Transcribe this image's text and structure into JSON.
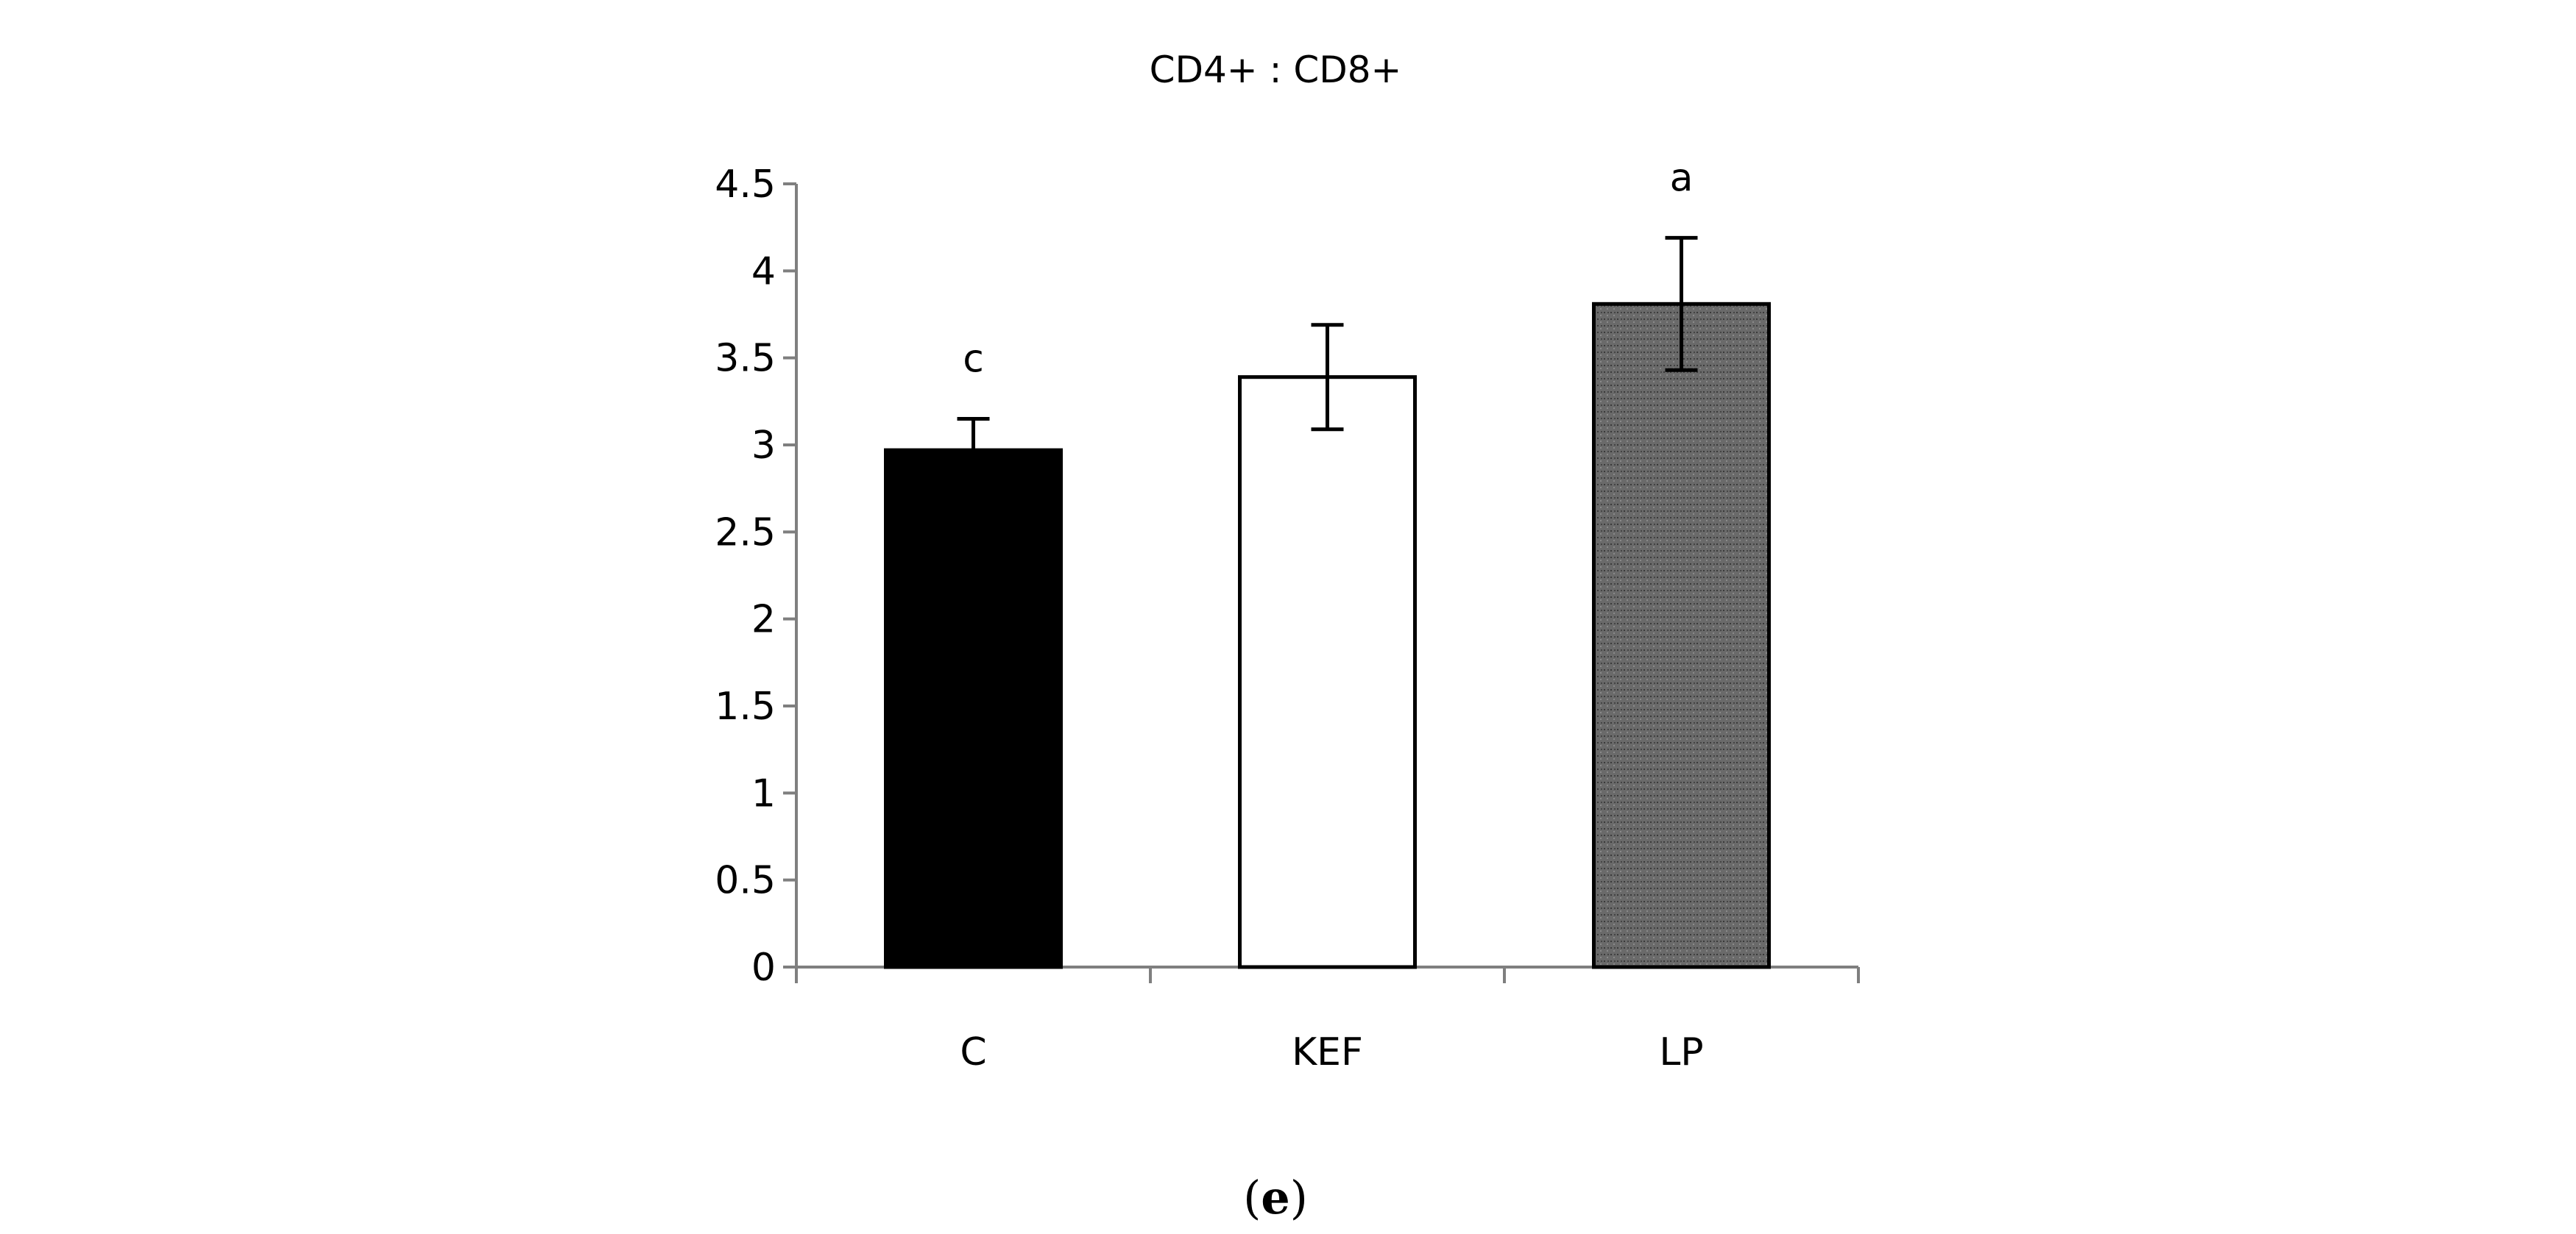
{
  "chart_data": {
    "type": "bar",
    "title": "CD4+ : CD8+",
    "panel_label": "(e)",
    "panel_paren_open": "(",
    "panel_letter": "e",
    "panel_paren_close": ")",
    "xlabel": "",
    "ylabel": "",
    "ylim": [
      0,
      4.5
    ],
    "yticks": [
      0,
      0.5,
      1,
      1.5,
      2,
      2.5,
      3,
      3.5,
      4,
      4.5
    ],
    "ytick_labels": [
      "0",
      "0.5",
      "1",
      "1.5",
      "2",
      "2.5",
      "3",
      "3.5",
      "4",
      "4.5"
    ],
    "grid": false,
    "categories": [
      "C",
      "KEF",
      "LP"
    ],
    "values": [
      2.97,
      3.39,
      3.81
    ],
    "errors": [
      0.18,
      0.3,
      0.38
    ],
    "significance_labels": [
      "c",
      "",
      "a"
    ],
    "bar_colors": [
      "#000000",
      "#ffffff",
      "#6e6e6e"
    ]
  }
}
